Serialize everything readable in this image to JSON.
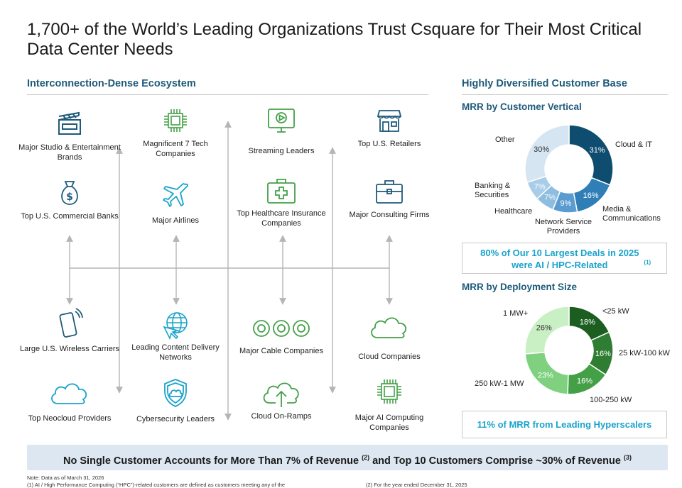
{
  "title": "1,700+ of the World’s Leading Organizations Trust Csquare for Their Most Critical Data Center Needs",
  "left": {
    "heading": "Interconnection-Dense Ecosystem",
    "cells": [
      {
        "label": "Major Studio & Entertainment Brands",
        "icon": "clapperboard-icon"
      },
      {
        "label": "Magnificent 7 Tech Companies",
        "icon": "chip-icon"
      },
      {
        "label": "Streaming Leaders",
        "icon": "monitor-play-icon"
      },
      {
        "label": "Top U.S. Retailers",
        "icon": "storefront-icon"
      },
      {
        "label": "Top U.S. Commercial Banks",
        "icon": "money-bag-icon"
      },
      {
        "label": "Major Airlines",
        "icon": "airplane-icon"
      },
      {
        "label": "Top Healthcare Insurance Companies",
        "icon": "medical-kit-icon"
      },
      {
        "label": "Major Consulting Firms",
        "icon": "briefcase-icon"
      },
      {
        "label": "Large U.S. Wireless Carriers",
        "icon": "smartphone-icon"
      },
      {
        "label": "Leading Content Delivery Networks",
        "icon": "globe-cursor-icon"
      },
      {
        "label": "Major Cable Companies",
        "icon": "cable-rings-icon"
      },
      {
        "label": "Cloud Companies",
        "icon": "cloud-icon"
      },
      {
        "label": "Top Neocloud Providers",
        "icon": "cloud-outline-icon"
      },
      {
        "label": "Cybersecurity Leaders",
        "icon": "shield-cloud-icon"
      },
      {
        "label": "Cloud On-Ramps",
        "icon": "cloud-upload-icon"
      },
      {
        "label": "Major AI Computing Companies",
        "icon": "ai-chip-icon"
      }
    ]
  },
  "right": {
    "heading": "Highly Diversified Customer Base",
    "callout1_main": "80% of Our 10 Largest Deals in 2025 were AI / HPC-Related",
    "callout1_sup": "(1)",
    "callout2": "11% of MRR from Leading Hyperscalers"
  },
  "chart_data": [
    {
      "type": "pie",
      "title": "MRR by Customer Vertical",
      "categories": [
        "Cloud & IT",
        "Media & Communications",
        "Network Service Providers",
        "Healthcare",
        "Banking & Securities",
        "Other"
      ],
      "values": [
        31,
        16,
        9,
        7,
        7,
        30
      ],
      "value_labels": [
        "31%",
        "16%",
        "9%",
        "7%",
        "7%",
        "30%"
      ],
      "colors": [
        "#0f4d70",
        "#2f7fb6",
        "#5a9bd0",
        "#8fbde0",
        "#a9cde9",
        "#d5e5f2"
      ],
      "legend": "labels around donut"
    },
    {
      "type": "pie",
      "title": "MRR by Deployment Size",
      "categories": [
        "<25 kW",
        "25 kW-100 kW",
        "100-250 kW",
        "250 kW-1 MW",
        "1 MW+"
      ],
      "values": [
        18,
        16,
        16,
        23,
        26
      ],
      "value_labels": [
        "18%",
        "16%",
        "16%",
        "23%",
        "26%"
      ],
      "colors": [
        "#1b5e20",
        "#2e7d32",
        "#43a047",
        "#7fd17f",
        "#c9efc4"
      ],
      "legend": "labels around donut"
    }
  ],
  "banner": {
    "part1": "No Single Customer Accounts for More Than 7% of Revenue",
    "sup1": "(2)",
    "part2": "and Top 10 Customers Comprise ~30% of Revenue",
    "sup2": "(3)"
  },
  "notes": {
    "line1": "Note: Data as of March 31, 2026",
    "line2": "(1) AI / High Performance Computing (“HPC”)-related customers are defined as customers meeting any of the",
    "line3": "(2) For the year ended December 31, 2025"
  }
}
